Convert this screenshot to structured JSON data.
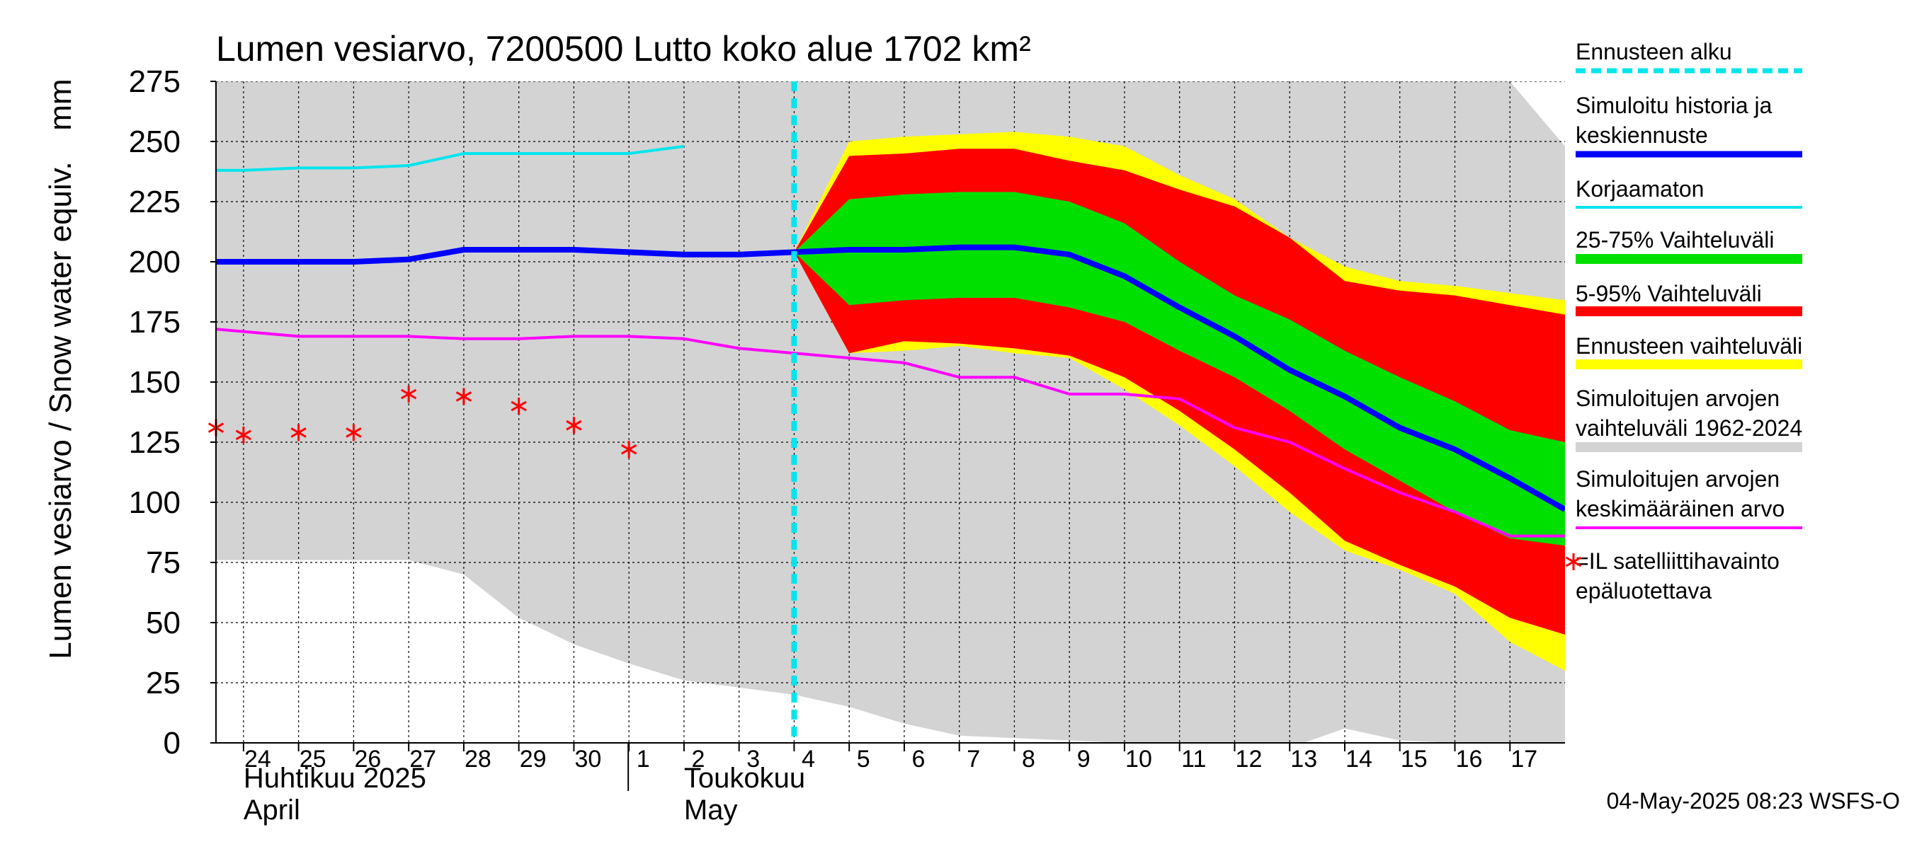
{
  "chart_data": {
    "type": "area",
    "title": "Lumen vesiarvo, 7200500 Lutto koko alue 1702 km²",
    "ylabel": "Lumen vesiarvo / Snow water equiv.",
    "yunit": "mm",
    "ylim": [
      0,
      275
    ],
    "yticks": [
      0,
      25,
      50,
      75,
      100,
      125,
      150,
      175,
      200,
      225,
      250,
      275
    ],
    "xlim": [
      "2025-04-23T12:00",
      "2025-05-18T00:00"
    ],
    "grid": true,
    "legend_position": "right",
    "forecast_start": "2025-05-04",
    "x_day_labels": [
      {
        "date": "2025-04-24",
        "label": "24"
      },
      {
        "date": "2025-04-25",
        "label": "25"
      },
      {
        "date": "2025-04-26",
        "label": "26"
      },
      {
        "date": "2025-04-27",
        "label": "27"
      },
      {
        "date": "2025-04-28",
        "label": "28"
      },
      {
        "date": "2025-04-29",
        "label": "29"
      },
      {
        "date": "2025-04-30",
        "label": "30"
      },
      {
        "date": "2025-05-01",
        "label": "1"
      },
      {
        "date": "2025-05-02",
        "label": "2"
      },
      {
        "date": "2025-05-03",
        "label": "3"
      },
      {
        "date": "2025-05-04",
        "label": "4"
      },
      {
        "date": "2025-05-05",
        "label": "5"
      },
      {
        "date": "2025-05-06",
        "label": "6"
      },
      {
        "date": "2025-05-07",
        "label": "7"
      },
      {
        "date": "2025-05-08",
        "label": "8"
      },
      {
        "date": "2025-05-09",
        "label": "9"
      },
      {
        "date": "2025-05-10",
        "label": "10"
      },
      {
        "date": "2025-05-11",
        "label": "11"
      },
      {
        "date": "2025-05-12",
        "label": "12"
      },
      {
        "date": "2025-05-13",
        "label": "13"
      },
      {
        "date": "2025-05-14",
        "label": "14"
      },
      {
        "date": "2025-05-15",
        "label": "15"
      },
      {
        "date": "2025-05-16",
        "label": "16"
      },
      {
        "date": "2025-05-17",
        "label": "17"
      }
    ],
    "month_labels": [
      {
        "date": "2025-04-24",
        "line1": "Huhtikuu  2025",
        "line2": "April"
      },
      {
        "date": "2025-05-02",
        "line1": "Toukokuu",
        "line2": "May"
      }
    ],
    "month_separator": "2025-05-01",
    "x_dates": [
      "2025-04-24",
      "2025-04-25",
      "2025-04-26",
      "2025-04-27",
      "2025-04-28",
      "2025-04-29",
      "2025-04-30",
      "2025-05-01",
      "2025-05-02",
      "2025-05-03",
      "2025-05-04",
      "2025-05-05",
      "2025-05-06",
      "2025-05-07",
      "2025-05-08",
      "2025-05-09",
      "2025-05-10",
      "2025-05-11",
      "2025-05-12",
      "2025-05-13",
      "2025-05-14",
      "2025-05-15",
      "2025-05-16",
      "2025-05-17"
    ],
    "history_range": {
      "name": "Simuloitujen arvojen vaihteluväli 1962-2024",
      "color": "#d3d3d3",
      "x": [
        "2025-04-23T12:00",
        "2025-04-27",
        "2025-04-28",
        "2025-04-29",
        "2025-04-30",
        "2025-05-01",
        "2025-05-02",
        "2025-05-03",
        "2025-05-04",
        "2025-05-05",
        "2025-05-06",
        "2025-05-07",
        "2025-05-08",
        "2025-05-09",
        "2025-05-10",
        "2025-05-11",
        "2025-05-12",
        "2025-05-13",
        "2025-05-14",
        "2025-05-15",
        "2025-05-16",
        "2025-05-17",
        "2025-05-18T00:00"
      ],
      "upper": [
        275,
        275,
        275,
        275,
        275,
        275,
        275,
        275,
        275,
        275,
        275,
        275,
        275,
        275,
        275,
        275,
        275,
        275,
        275,
        275,
        275,
        275,
        248
      ],
      "lower": [
        76,
        76,
        70,
        52,
        41,
        33,
        26,
        23,
        20,
        15,
        8,
        3,
        2,
        1,
        0,
        0,
        0,
        -2,
        6,
        1,
        0,
        0,
        0
      ]
    },
    "forecast_bands": {
      "x": [
        "2025-05-04",
        "2025-05-05",
        "2025-05-06",
        "2025-05-07",
        "2025-05-08",
        "2025-05-09",
        "2025-05-10",
        "2025-05-11",
        "2025-05-12",
        "2025-05-13",
        "2025-05-14",
        "2025-05-15",
        "2025-05-16",
        "2025-05-17",
        "2025-05-18T00:00"
      ],
      "ennuste": {
        "name": "Ennusteen vaihteluväli",
        "color": "#ffff00",
        "upper": [
          204,
          250,
          252,
          253,
          254,
          252,
          248,
          236,
          226,
          210,
          198,
          192,
          190,
          187,
          184
        ],
        "lower": [
          204,
          162,
          163,
          165,
          162,
          160,
          147,
          132,
          115,
          96,
          80,
          72,
          62,
          42,
          30
        ]
      },
      "p5_95": {
        "name": "5-95% Vaihteluväli",
        "color": "#ff0000",
        "upper": [
          204,
          244,
          245,
          247,
          247,
          242,
          238,
          230,
          223,
          210,
          192,
          188,
          186,
          182,
          178
        ],
        "lower": [
          204,
          162,
          167,
          166,
          164,
          161,
          152,
          138,
          122,
          104,
          84,
          74,
          65,
          52,
          45
        ]
      },
      "p25_75": {
        "name": "25-75% Vaihteluväli",
        "color": "#00e000",
        "upper": [
          204,
          226,
          228,
          229,
          229,
          225,
          216,
          200,
          186,
          176,
          163,
          152,
          142,
          130,
          125
        ]
      }
    },
    "series": [
      {
        "name": "Simuloitu historia ja keskiennuste",
        "color": "#0000ff",
        "width": 8,
        "x": [
          "2025-04-23T12:00",
          "2025-04-24",
          "2025-04-25",
          "2025-04-26",
          "2025-04-27",
          "2025-04-28",
          "2025-04-29",
          "2025-04-30",
          "2025-05-01",
          "2025-05-02",
          "2025-05-03",
          "2025-05-04",
          "2025-05-05",
          "2025-05-06",
          "2025-05-07",
          "2025-05-08",
          "2025-05-09",
          "2025-05-10",
          "2025-05-11",
          "2025-05-12",
          "2025-05-13",
          "2025-05-14",
          "2025-05-15",
          "2025-05-16",
          "2025-05-17",
          "2025-05-18T00:00"
        ],
        "y": [
          200,
          200,
          200,
          200,
          201,
          205,
          205,
          205,
          204,
          203,
          203,
          204,
          205,
          205,
          206,
          206,
          203,
          194,
          181,
          169,
          155,
          144,
          131,
          122,
          110,
          97
        ]
      },
      {
        "name": "Korjaamaton",
        "color": "#00e5ee",
        "width": 4,
        "x": [
          "2025-04-23T12:00",
          "2025-04-24",
          "2025-04-25",
          "2025-04-26",
          "2025-04-27",
          "2025-04-28",
          "2025-04-29",
          "2025-04-30",
          "2025-05-01",
          "2025-05-02"
        ],
        "y": [
          238,
          238,
          239,
          239,
          240,
          245,
          245,
          245,
          245,
          248
        ]
      },
      {
        "name": "Simuloitujen arvojen keskimääräinen arvo",
        "color": "#ff00ff",
        "width": 4,
        "x": [
          "2025-04-23T12:00",
          "2025-04-24",
          "2025-04-25",
          "2025-04-26",
          "2025-04-27",
          "2025-04-28",
          "2025-04-29",
          "2025-04-30",
          "2025-05-01",
          "2025-05-02",
          "2025-05-03",
          "2025-05-04",
          "2025-05-05",
          "2025-05-06",
          "2025-05-07",
          "2025-05-08",
          "2025-05-09",
          "2025-05-10",
          "2025-05-11",
          "2025-05-12",
          "2025-05-13",
          "2025-05-14",
          "2025-05-15",
          "2025-05-16",
          "2025-05-17",
          "2025-05-18T00:00"
        ],
        "y": [
          172,
          171,
          169,
          169,
          169,
          168,
          168,
          169,
          169,
          168,
          164,
          162,
          160,
          158,
          152,
          152,
          145,
          145,
          143,
          131,
          125,
          114,
          104,
          96,
          86,
          86
        ]
      }
    ],
    "satellite_obs": {
      "name": "=IL satelliittihavainto epäluotettava",
      "color": "#ff0000",
      "x": [
        "2025-04-23T12:00",
        "2025-04-24",
        "2025-04-25",
        "2025-04-26",
        "2025-04-27",
        "2025-04-28",
        "2025-04-29",
        "2025-04-30",
        "2025-05-01"
      ],
      "y": [
        131,
        128,
        129,
        129,
        145,
        144,
        140,
        132,
        122
      ]
    },
    "legend": [
      {
        "label": "Ennusteen alku",
        "color": "#00e5ee",
        "style": "dashed"
      },
      {
        "label": "Simuloitu historia ja\nkeskiennuste",
        "color": "#0000ff",
        "style": "line-thick"
      },
      {
        "label": "Korjaamaton",
        "color": "#00e5ee",
        "style": "line"
      },
      {
        "label": "25-75% Vaihteluväli",
        "color": "#00e000",
        "style": "band"
      },
      {
        "label": "5-95% Vaihteluväli",
        "color": "#ff0000",
        "style": "band"
      },
      {
        "label": "Ennusteen vaihteluväli",
        "color": "#ffff00",
        "style": "band"
      },
      {
        "label": "Simuloitujen arvojen\nvaihteluväli 1962-2024",
        "color": "#d3d3d3",
        "style": "band"
      },
      {
        "label": "Simuloitujen arvojen\nkeskimääräinen arvo",
        "color": "#ff00ff",
        "style": "line"
      },
      {
        "label": "=IL satelliittihavainto\nepäluotettava",
        "color": "#ff0000",
        "style": "marker"
      }
    ],
    "footer": "04-May-2025 08:23 WSFS-O"
  }
}
